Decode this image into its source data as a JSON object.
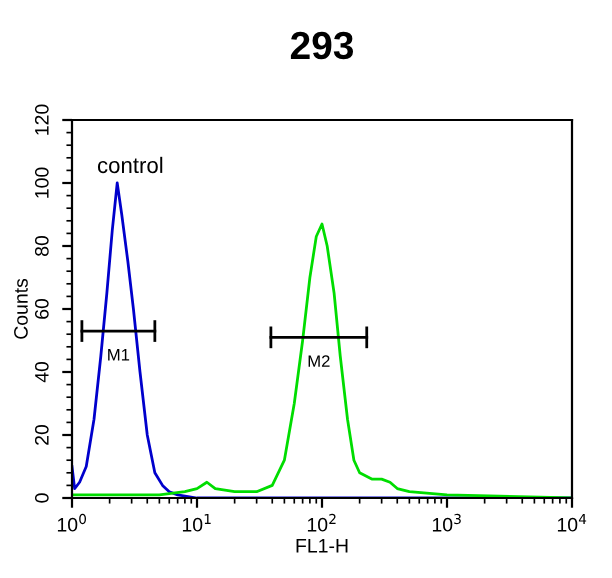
{
  "chart_data": {
    "type": "line",
    "title": "293",
    "xlabel": "FL1-H",
    "ylabel": "Counts",
    "log": "x",
    "xlim": [
      1,
      10000
    ],
    "ylim": [
      0,
      120
    ],
    "xticks": [
      {
        "value": 1,
        "label": "10$^{0}$"
      },
      {
        "value": 10,
        "label": "10$^{1}$"
      },
      {
        "value": 100,
        "label": "10$^{2}$"
      },
      {
        "value": 1000,
        "label": "10$^{3}$"
      },
      {
        "value": 10000,
        "label": "10$^{4}$"
      }
    ],
    "yticks": [
      0,
      20,
      40,
      60,
      80,
      100,
      120
    ],
    "grid": false,
    "legend": false,
    "annotations": [
      "control",
      "M1",
      "M2"
    ],
    "series": [
      {
        "color": "#0000cc",
        "x": [
          1.0,
          1.05,
          1.15,
          1.3,
          1.5,
          1.7,
          1.9,
          2.1,
          2.3,
          2.5,
          2.8,
          3.1,
          3.5,
          4.0,
          4.6,
          5.3,
          6,
          7,
          10,
          100,
          1000,
          10000
        ],
        "values": [
          10,
          3,
          5,
          10,
          25,
          45,
          65,
          85,
          100,
          90,
          75,
          60,
          40,
          20,
          8,
          4,
          2,
          1,
          0,
          0,
          0,
          0
        ]
      },
      {
        "color": "#00dd00",
        "x": [
          1,
          5,
          8,
          10,
          12,
          14,
          20,
          30,
          40,
          50,
          60,
          70,
          80,
          90,
          100,
          110,
          125,
          140,
          160,
          180,
          200,
          250,
          300,
          350,
          400,
          500,
          1000,
          10000
        ],
        "values": [
          1,
          1,
          2,
          3,
          5,
          3,
          2,
          2,
          4,
          12,
          30,
          50,
          70,
          83,
          87,
          80,
          65,
          45,
          25,
          12,
          8,
          6,
          6,
          5,
          3,
          2,
          1,
          0
        ]
      },
      {
        "color": "#000000",
        "x": [
          1.2,
          4.6
        ],
        "values": [
          53,
          53
        ]
      },
      {
        "color": "#000000",
        "x": [
          39,
          228
        ],
        "values": [
          51,
          51
        ]
      }
    ]
  }
}
